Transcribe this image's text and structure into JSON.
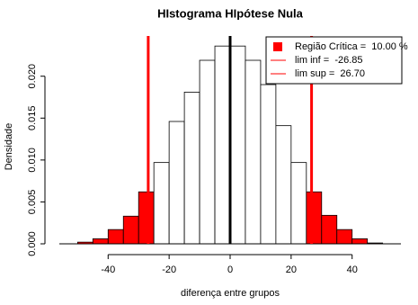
{
  "chart_data": {
    "type": "histogram",
    "title": "HIstograma HIpótese Nula",
    "x_label": "diferença entre grupos",
    "y_label": "Densidade",
    "bins": [
      -50,
      -45,
      -40,
      -35,
      -30,
      -25,
      -20,
      -15,
      -10,
      -5,
      0,
      5,
      10,
      15,
      20,
      25,
      30,
      35,
      40,
      45,
      50
    ],
    "values": [
      0.0002,
      0.0006,
      0.0017,
      0.0033,
      0.0062,
      0.0097,
      0.0146,
      0.0181,
      0.0219,
      0.0236,
      0.0236,
      0.0219,
      0.019,
      0.0141,
      0.0097,
      0.0062,
      0.0034,
      0.0017,
      0.0006,
      0.0001
    ],
    "color": "#ffffff",
    "critical_color": "#ff0000",
    "vlines": [
      -26.85,
      26.7,
      0
    ],
    "vline_colors": [
      "#ff0000",
      "#ff0000",
      "#000000"
    ],
    "xlim": [
      -56,
      56
    ],
    "ylim": [
      0,
      0.0248
    ],
    "xticks": [
      -40,
      -20,
      0,
      20,
      40
    ],
    "yticks": [
      {
        "value": 0,
        "label": "0.000"
      },
      {
        "value": 0.005,
        "label": "0.005"
      },
      {
        "value": 0.01,
        "label": "0.010"
      },
      {
        "value": 0.015,
        "label": "0.015"
      },
      {
        "value": 0.02,
        "label": "0.020"
      }
    ],
    "legend_position": "top-right",
    "legend": [
      {
        "label": "Região Crítica =  10.00 %",
        "color": "#ff0000",
        "symbol": "square"
      },
      {
        "label": "lim inf =  -26.85",
        "color": "#ff0000",
        "symbol": "line"
      },
      {
        "label": "lim sup =  26.70",
        "color": "#ff0000",
        "symbol": "line"
      }
    ]
  }
}
